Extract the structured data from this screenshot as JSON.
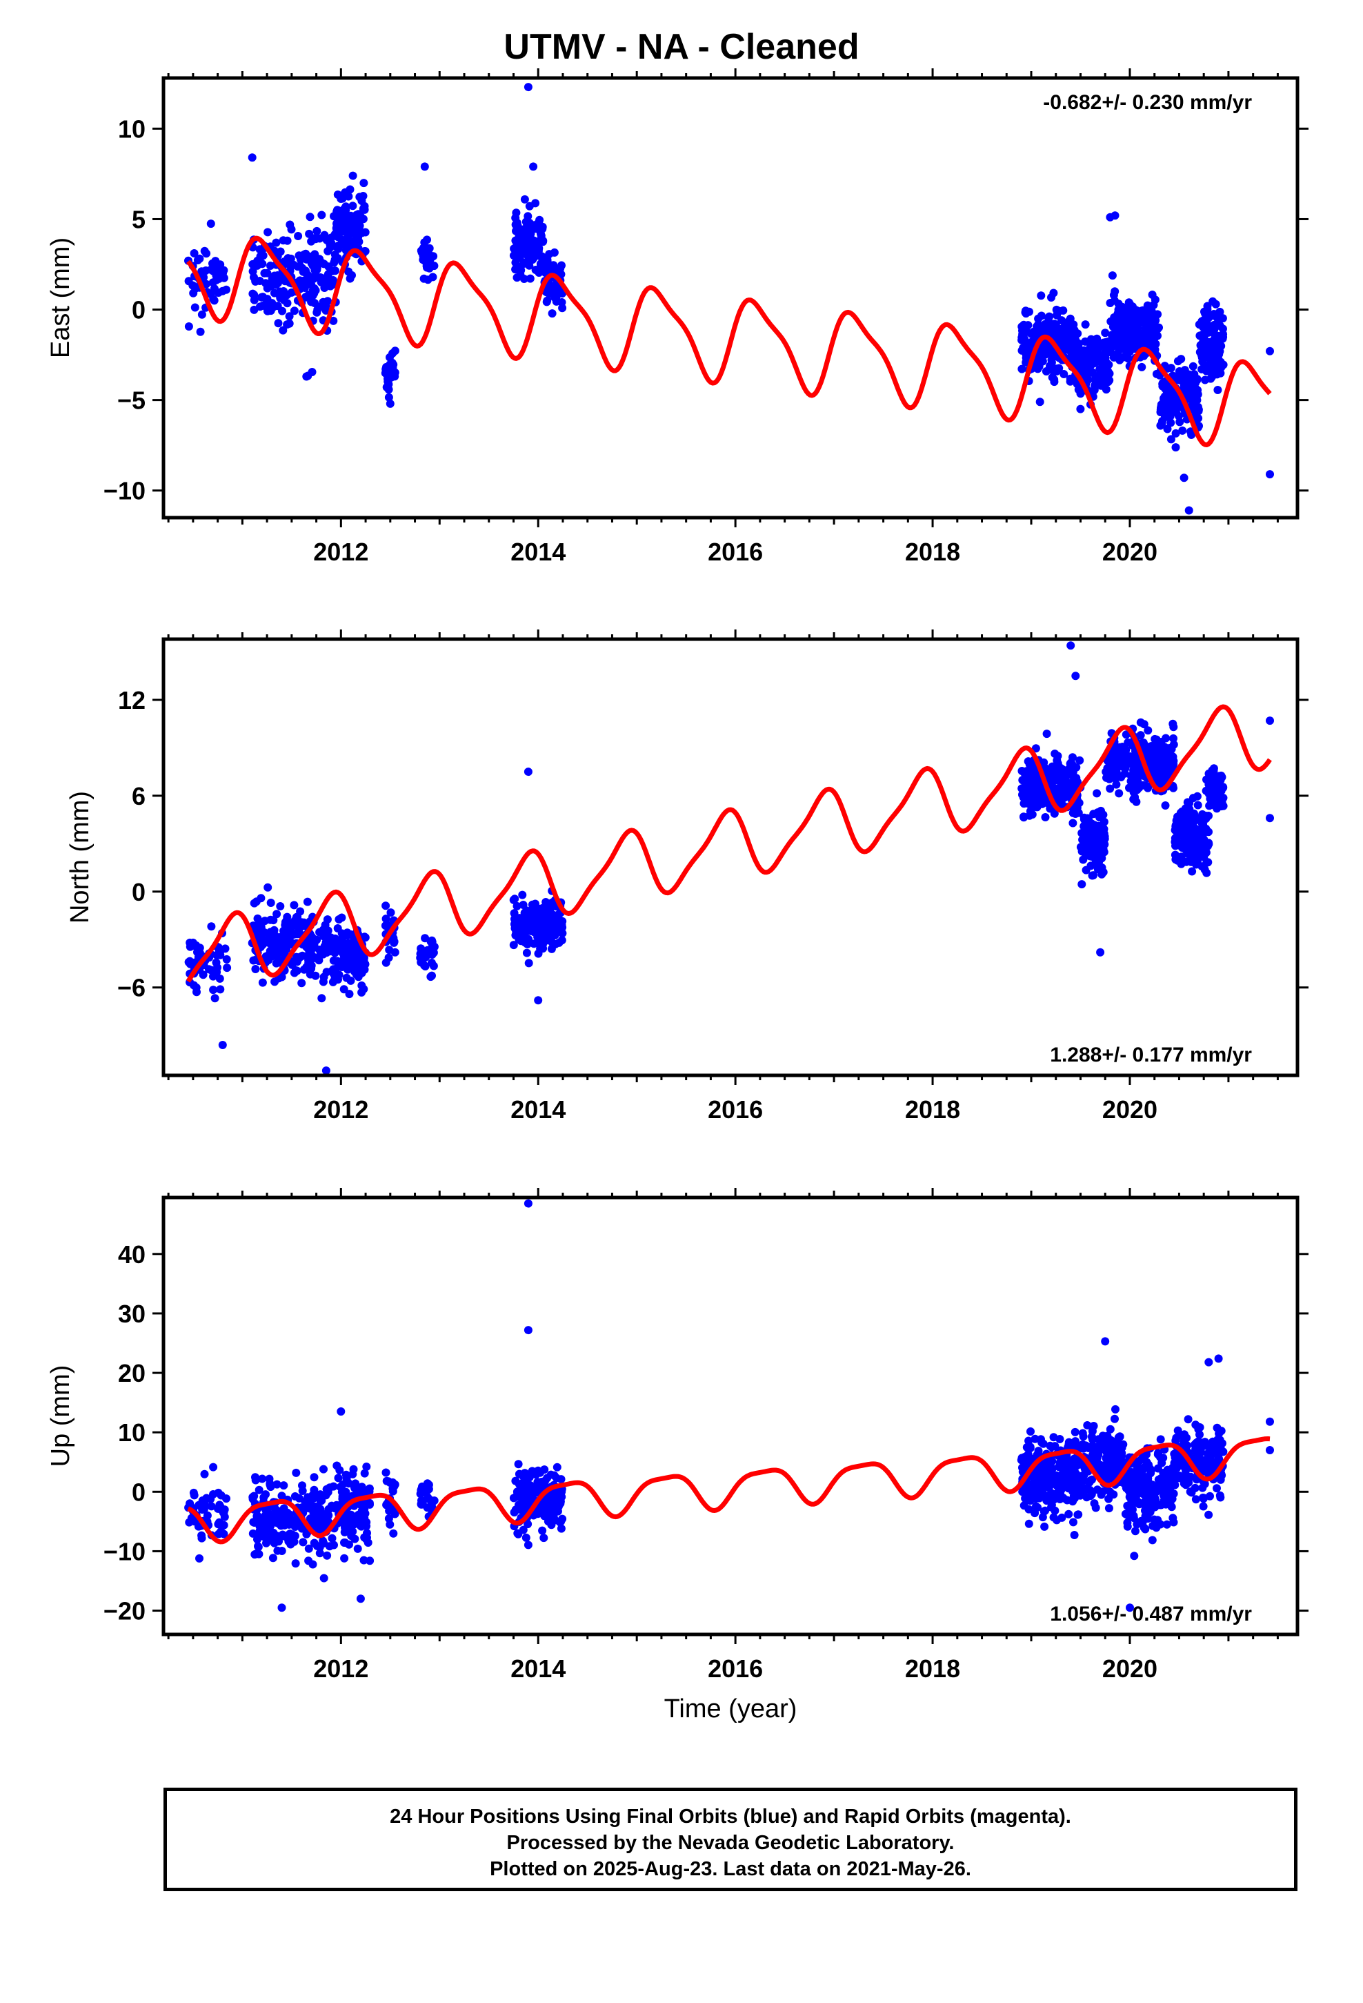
{
  "title": "UTMV  - NA - Cleaned",
  "footer": {
    "line1": "24 Hour Positions Using Final Orbits (blue) and Rapid Orbits (magenta).",
    "line2": "Processed by the Nevada Geodetic Laboratory.",
    "line3": "Plotted on 2025-Aug-23. Last data on 2021-May-26."
  },
  "colors": {
    "data": "#0000ff",
    "model": "#ff0000",
    "frame": "#000000"
  },
  "chart_data": [
    {
      "type": "scatter",
      "title": "UTMV  - NA - Cleaned",
      "ylabel": "East (mm)",
      "xlabel": "",
      "rate_label": "-0.682+/- 0.230 mm/yr",
      "rate_position": "top-right",
      "xlim": [
        2010.2,
        2021.7
      ],
      "ylim": [
        -11.5,
        12.8
      ],
      "x_ticks": [
        2012,
        2014,
        2016,
        2018,
        2020
      ],
      "x_tick_labels": [
        "2012",
        "2014",
        "2016",
        "2018",
        "2020"
      ],
      "y_ticks": [
        -10,
        -5,
        0,
        5,
        10
      ],
      "y_tick_labels": [
        "−10",
        "−5",
        "0",
        "5",
        "10"
      ],
      "series": [
        {
          "role": "observations",
          "segments": [
            {
              "x": [
                2010.45,
                2010.85
              ],
              "center": 1.8,
              "spread": 2.2,
              "n": 55
            },
            {
              "x": [
                2011.1,
                2011.95
              ],
              "center": 2.0,
              "spread": 3.0,
              "n": 220
            },
            {
              "x": [
                2011.95,
                2012.25
              ],
              "center": 4.5,
              "spread": 2.3,
              "n": 120
            },
            {
              "x": [
                2012.45,
                2012.55
              ],
              "center": -3.5,
              "spread": 1.3,
              "n": 25
            },
            {
              "x": [
                2012.8,
                2012.95
              ],
              "center": 2.8,
              "spread": 1.3,
              "n": 25
            },
            {
              "x": [
                2013.75,
                2014.05
              ],
              "center": 3.6,
              "spread": 2.0,
              "n": 130
            },
            {
              "x": [
                2014.05,
                2014.25
              ],
              "center": 1.6,
              "spread": 1.6,
              "n": 50
            },
            {
              "x": [
                2018.9,
                2019.45
              ],
              "center": -1.8,
              "spread": 1.9,
              "n": 260
            },
            {
              "x": [
                2019.45,
                2019.8
              ],
              "center": -3.2,
              "spread": 1.7,
              "n": 150
            },
            {
              "x": [
                2019.8,
                2020.3
              ],
              "center": -1.2,
              "spread": 2.0,
              "n": 230
            },
            {
              "x": [
                2020.3,
                2020.7
              ],
              "center": -4.8,
              "spread": 2.0,
              "n": 170
            },
            {
              "x": [
                2020.7,
                2020.95
              ],
              "center": -1.8,
              "spread": 2.2,
              "n": 120
            }
          ],
          "points": [
            [
              2011.1,
              8.4
            ],
            [
              2012.85,
              7.9
            ],
            [
              2013.9,
              12.3
            ],
            [
              2013.95,
              7.9
            ],
            [
              2019.85,
              5.2
            ],
            [
              2019.8,
              5.1
            ],
            [
              2020.6,
              -11.1
            ],
            [
              2020.55,
              -9.3
            ],
            [
              2021.42,
              -2.3
            ],
            [
              2021.42,
              -9.1
            ],
            [
              2011.65,
              -3.7
            ],
            [
              2012.5,
              -5.2
            ]
          ]
        },
        {
          "role": "model",
          "x": [
            2010.45,
            2021.42
          ],
          "rate": -0.682,
          "offset": 2.2,
          "annual_amp": 2.2,
          "annual_phase": 0.15,
          "semiannual_amp": 0.6,
          "semiannual_phase": 0.8
        }
      ]
    },
    {
      "type": "scatter",
      "ylabel": "North (mm)",
      "xlabel": "",
      "rate_label": "1.288+/- 0.177 mm/yr",
      "rate_position": "bottom-right",
      "xlim": [
        2010.2,
        2021.7
      ],
      "ylim": [
        -11.5,
        15.8
      ],
      "x_ticks": [
        2012,
        2014,
        2016,
        2018,
        2020
      ],
      "x_tick_labels": [
        "2012",
        "2014",
        "2016",
        "2018",
        "2020"
      ],
      "y_ticks": [
        -6,
        0,
        6,
        12
      ],
      "y_tick_labels": [
        "−6",
        "0",
        "6",
        "12"
      ],
      "series": [
        {
          "role": "observations",
          "segments": [
            {
              "x": [
                2010.45,
                2010.85
              ],
              "center": -4.3,
              "spread": 1.9,
              "n": 55
            },
            {
              "x": [
                2011.1,
                2011.9
              ],
              "center": -3.2,
              "spread": 2.4,
              "n": 220
            },
            {
              "x": [
                2011.9,
                2012.25
              ],
              "center": -4.0,
              "spread": 2.0,
              "n": 120
            },
            {
              "x": [
                2012.45,
                2012.55
              ],
              "center": -2.5,
              "spread": 1.5,
              "n": 25
            },
            {
              "x": [
                2012.8,
                2012.95
              ],
              "center": -4.0,
              "spread": 1.3,
              "n": 25
            },
            {
              "x": [
                2013.75,
                2014.25
              ],
              "center": -2.0,
              "spread": 1.9,
              "n": 170
            },
            {
              "x": [
                2018.9,
                2019.5
              ],
              "center": 6.5,
              "spread": 2.0,
              "n": 260
            },
            {
              "x": [
                2019.5,
                2019.75
              ],
              "center": 3.2,
              "spread": 2.3,
              "n": 120
            },
            {
              "x": [
                2019.75,
                2020.45
              ],
              "center": 8.0,
              "spread": 2.0,
              "n": 280
            },
            {
              "x": [
                2020.45,
                2020.8
              ],
              "center": 3.5,
              "spread": 2.4,
              "n": 160
            },
            {
              "x": [
                2020.8,
                2020.95
              ],
              "center": 6.5,
              "spread": 1.6,
              "n": 60
            }
          ],
          "points": [
            [
              2019.4,
              15.4
            ],
            [
              2019.45,
              13.5
            ],
            [
              2013.9,
              7.5
            ],
            [
              2011.85,
              -11.2
            ],
            [
              2010.8,
              -9.6
            ],
            [
              2019.7,
              -3.8
            ],
            [
              2021.42,
              10.7
            ],
            [
              2021.42,
              4.6
            ],
            [
              2014.0,
              -6.8
            ],
            [
              2010.5,
              -3.2
            ]
          ]
        },
        {
          "role": "model",
          "x": [
            2010.45,
            2021.42
          ],
          "rate": 1.288,
          "offset": -4.2,
          "annual_amp": 2.0,
          "annual_phase": 2.3,
          "semiannual_amp": 0.5,
          "semiannual_phase": 1.6
        }
      ]
    },
    {
      "type": "scatter",
      "ylabel": "Up (mm)",
      "xlabel": "Time (year)",
      "rate_label": "1.056+/- 0.487 mm/yr",
      "rate_position": "bottom-right",
      "xlim": [
        2010.2,
        2021.7
      ],
      "ylim": [
        -24,
        49.5
      ],
      "x_ticks": [
        2012,
        2014,
        2016,
        2018,
        2020
      ],
      "x_tick_labels": [
        "2012",
        "2014",
        "2016",
        "2018",
        "2020"
      ],
      "y_ticks": [
        -20,
        -10,
        0,
        10,
        20,
        30,
        40
      ],
      "y_tick_labels": [
        "−20",
        "−10",
        "0",
        "10",
        "20",
        "30",
        "40"
      ],
      "series": [
        {
          "role": "observations",
          "segments": [
            {
              "x": [
                2010.45,
                2010.85
              ],
              "center": -4.0,
              "spread": 5.0,
              "n": 55
            },
            {
              "x": [
                2011.1,
                2011.95
              ],
              "center": -5.0,
              "spread": 7.0,
              "n": 220
            },
            {
              "x": [
                2011.95,
                2012.3
              ],
              "center": -3.0,
              "spread": 7.5,
              "n": 120
            },
            {
              "x": [
                2012.45,
                2012.55
              ],
              "center": -1.5,
              "spread": 5.0,
              "n": 25
            },
            {
              "x": [
                2012.8,
                2012.95
              ],
              "center": -0.5,
              "spread": 4.0,
              "n": 25
            },
            {
              "x": [
                2013.75,
                2014.25
              ],
              "center": -1.5,
              "spread": 6.0,
              "n": 170
            },
            {
              "x": [
                2018.9,
                2019.5
              ],
              "center": 2.5,
              "spread": 7.0,
              "n": 260
            },
            {
              "x": [
                2019.5,
                2019.95
              ],
              "center": 4.5,
              "spread": 7.0,
              "n": 170
            },
            {
              "x": [
                2019.95,
                2020.45
              ],
              "center": 0.0,
              "spread": 7.0,
              "n": 200
            },
            {
              "x": [
                2020.45,
                2020.95
              ],
              "center": 5.0,
              "spread": 6.0,
              "n": 200
            }
          ],
          "points": [
            [
              2013.9,
              48.5
            ],
            [
              2013.9,
              27.2
            ],
            [
              2019.75,
              25.3
            ],
            [
              2020.9,
              22.4
            ],
            [
              2020.8,
              21.8
            ],
            [
              2020.0,
              -19.5
            ],
            [
              2011.4,
              -19.5
            ],
            [
              2012.2,
              -18.0
            ],
            [
              2021.42,
              11.8
            ],
            [
              2021.42,
              7.0
            ],
            [
              2012.0,
              13.5
            ]
          ]
        },
        {
          "role": "model",
          "x": [
            2010.45,
            2021.42
          ],
          "rate": 1.056,
          "offset": -5.0,
          "annual_amp": 3.0,
          "annual_phase": -0.3,
          "semiannual_amp": 0.8,
          "semiannual_phase": 1.2
        }
      ]
    }
  ]
}
